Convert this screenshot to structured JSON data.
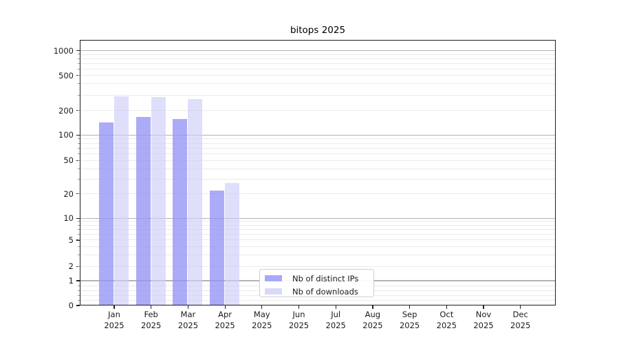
{
  "chart_data": {
    "type": "bar",
    "title": "bitops 2025",
    "x": {
      "categories": [
        "Jan",
        "Feb",
        "Mar",
        "Apr",
        "May",
        "Jun",
        "Jul",
        "Aug",
        "Sep",
        "Oct",
        "Nov",
        "Dec"
      ],
      "year": "2025"
    },
    "series": [
      {
        "name": "Nb of distinct IPs",
        "values": [
          144,
          167,
          159,
          22,
          0,
          0,
          0,
          0,
          0,
          0,
          0,
          0
        ],
        "fill": "rgba(147,147,246,0.78)",
        "legend_swatch": "#a9a9f7"
      },
      {
        "name": "Nb of downloads",
        "values": [
          289,
          284,
          271,
          27,
          0,
          0,
          0,
          0,
          0,
          0,
          0,
          0
        ],
        "fill": "rgba(206,206,250,0.66)",
        "legend_swatch": "#d9d9fb"
      }
    ],
    "y": {
      "scale": "symlog-like",
      "ylim": [
        0,
        1300
      ],
      "tick_values": [
        0,
        1,
        2,
        5,
        10,
        20,
        50,
        100,
        200,
        500,
        1000
      ],
      "tick_labels": [
        "0",
        "1",
        "2",
        "5",
        "10",
        "20",
        "50",
        "100",
        "200",
        "500",
        "1000"
      ],
      "scale_anchors": [
        [
          0,
          0
        ],
        [
          1,
          0.0934
        ],
        [
          2,
          0.1471
        ],
        [
          5,
          0.2464
        ],
        [
          10,
          0.3287
        ],
        [
          20,
          0.4202
        ],
        [
          50,
          0.546
        ],
        [
          100,
          0.6415
        ],
        [
          200,
          0.7341
        ],
        [
          500,
          0.8665
        ],
        [
          1000,
          0.9598
        ]
      ],
      "major_gridlines": [
        1,
        10,
        100,
        1000
      ],
      "minor_gridlines": [
        0.2,
        0.4,
        0.6,
        0.8,
        2,
        3,
        4,
        5,
        6,
        7,
        8,
        9,
        20,
        30,
        40,
        50,
        60,
        70,
        80,
        90,
        200,
        300,
        400,
        500,
        600,
        700,
        800,
        900
      ]
    },
    "grid": true,
    "legend_position": "lower-center"
  },
  "colors": {
    "grid_major": "#b3b3b3",
    "grid_minor": "#ebebeb",
    "spine": "#1c1c1c",
    "text": "#1a1a1a",
    "background": "#ffffff"
  }
}
